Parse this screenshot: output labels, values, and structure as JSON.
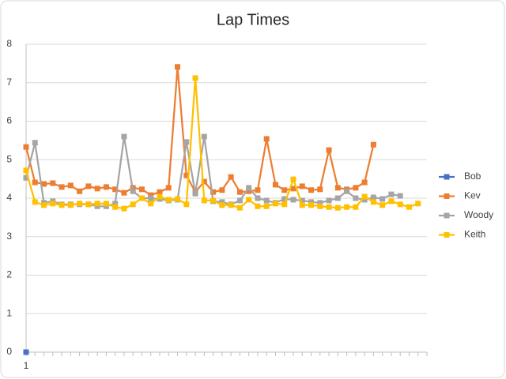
{
  "chart_data": {
    "type": "line",
    "title": "Lap Times",
    "categories": [
      "1",
      null,
      null,
      null,
      null,
      null,
      null,
      null,
      null,
      null,
      null,
      null,
      null,
      null,
      null,
      null,
      null,
      null,
      null,
      null,
      null,
      null,
      null,
      null,
      null,
      null,
      null,
      null,
      null,
      null,
      null,
      null,
      null,
      null,
      null,
      null,
      null,
      null,
      null,
      null,
      null,
      null,
      null,
      null,
      null,
      null
    ],
    "ylim": [
      0,
      8
    ],
    "yticks": [
      0,
      1,
      2,
      3,
      4,
      5,
      6,
      7,
      8
    ],
    "grid": true,
    "legend": "right",
    "series": [
      {
        "name": "Bob",
        "color": "#4472c4",
        "values": [
          0,
          null,
          null,
          null,
          null,
          null,
          null,
          null,
          null,
          null,
          null,
          null,
          null,
          null,
          null,
          null,
          null,
          null,
          null,
          null,
          null,
          null,
          null,
          null,
          null,
          null,
          null,
          null,
          null,
          null,
          null,
          null,
          null,
          null,
          null,
          null,
          null,
          null,
          null,
          null,
          null,
          null,
          null,
          null,
          null,
          null
        ]
      },
      {
        "name": "Kev",
        "color": "#ed7d31",
        "values": [
          5.33,
          4.41,
          4.37,
          4.39,
          4.29,
          4.33,
          4.18,
          4.31,
          4.25,
          4.29,
          4.23,
          4.14,
          4.27,
          4.23,
          4.08,
          4.16,
          4.27,
          7.41,
          4.59,
          4.16,
          4.43,
          4.16,
          4.21,
          4.55,
          4.16,
          4.18,
          4.21,
          5.54,
          4.35,
          4.21,
          4.25,
          4.31,
          4.21,
          4.23,
          5.25,
          4.27,
          4.23,
          4.27,
          4.41,
          5.39,
          null,
          null,
          null,
          null,
          null,
          null
        ]
      },
      {
        "name": "Woody",
        "color": "#a5a5a5",
        "values": [
          4.53,
          5.44,
          3.88,
          3.92,
          3.84,
          3.84,
          3.84,
          3.84,
          3.79,
          3.79,
          3.86,
          5.6,
          4.18,
          4.0,
          4.0,
          3.98,
          3.94,
          3.96,
          5.46,
          4.12,
          5.6,
          3.92,
          3.9,
          3.84,
          3.94,
          4.27,
          4.0,
          3.94,
          3.88,
          3.98,
          3.96,
          3.94,
          3.9,
          3.88,
          3.94,
          4.0,
          4.18,
          4.0,
          3.96,
          4.02,
          3.98,
          4.1,
          4.06,
          null,
          null,
          null
        ]
      },
      {
        "name": "Keith",
        "color": "#ffc000",
        "values": [
          4.72,
          3.9,
          3.82,
          3.86,
          3.82,
          3.82,
          3.86,
          3.84,
          3.86,
          3.86,
          3.77,
          3.73,
          3.84,
          4.0,
          3.86,
          4.04,
          3.96,
          3.98,
          3.84,
          7.12,
          3.94,
          3.94,
          3.82,
          3.82,
          3.75,
          3.96,
          3.79,
          3.79,
          3.86,
          3.84,
          4.49,
          3.82,
          3.82,
          3.79,
          3.77,
          3.75,
          3.77,
          3.77,
          4.04,
          3.9,
          3.82,
          3.92,
          3.84,
          3.77,
          3.86,
          null
        ]
      }
    ]
  }
}
